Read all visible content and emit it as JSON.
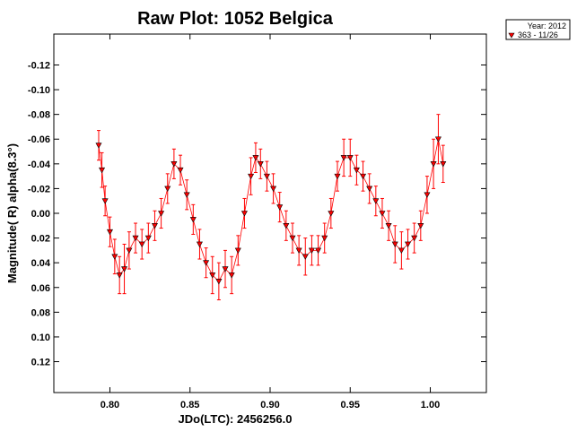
{
  "chart_data": {
    "type": "scatter",
    "title": "Raw Plot: 1052 Belgica",
    "xlabel": "JDo(LTC): 2456256.0",
    "ylabel": "Magnitude( R) alpha(8.3°)",
    "xlim": [
      0.765,
      1.035
    ],
    "ylim": [
      -0.145,
      0.145
    ],
    "y_inverted": true,
    "grid": false,
    "legend_position": "outside-top-right",
    "legend": {
      "title": "Year: 2012",
      "entries": [
        "363 - 11/26"
      ]
    },
    "x_ticks": [
      0.8,
      0.85,
      0.9,
      0.95,
      1.0
    ],
    "x_tick_labels": [
      "0.80",
      "0.85",
      "0.90",
      "0.95",
      "1.00"
    ],
    "y_ticks": [
      -0.12,
      -0.1,
      -0.08,
      -0.06,
      -0.04,
      -0.02,
      0.0,
      0.02,
      0.04,
      0.06,
      0.08,
      0.1,
      0.12
    ],
    "y_tick_labels": [
      "-0.12",
      "-0.10",
      "-0.08",
      "-0.06",
      "-0.04",
      "-0.02",
      "0.00",
      "0.02",
      "0.04",
      "0.06",
      "0.08",
      "0.10",
      "0.12"
    ],
    "series": [
      {
        "name": "363 - 11/26",
        "marker": "triangle-down",
        "marker_fill": "#ff0000",
        "marker_edge": "#000000",
        "error_color": "#ff0000",
        "x": [
          0.793,
          0.795,
          0.797,
          0.8,
          0.803,
          0.806,
          0.809,
          0.812,
          0.816,
          0.82,
          0.824,
          0.828,
          0.832,
          0.836,
          0.84,
          0.844,
          0.848,
          0.852,
          0.856,
          0.86,
          0.864,
          0.868,
          0.872,
          0.876,
          0.88,
          0.884,
          0.888,
          0.891,
          0.894,
          0.898,
          0.902,
          0.906,
          0.91,
          0.914,
          0.918,
          0.922,
          0.926,
          0.93,
          0.934,
          0.938,
          0.942,
          0.946,
          0.95,
          0.954,
          0.958,
          0.962,
          0.966,
          0.97,
          0.974,
          0.978,
          0.982,
          0.986,
          0.99,
          0.994,
          0.998,
          1.002,
          1.005,
          1.008
        ],
        "y": [
          -0.055,
          -0.035,
          -0.01,
          0.015,
          0.035,
          0.05,
          0.045,
          0.03,
          0.02,
          0.025,
          0.02,
          0.01,
          0.0,
          -0.02,
          -0.04,
          -0.035,
          -0.015,
          0.005,
          0.025,
          0.04,
          0.05,
          0.055,
          0.045,
          0.05,
          0.03,
          0.0,
          -0.03,
          -0.045,
          -0.04,
          -0.03,
          -0.02,
          -0.005,
          0.01,
          0.02,
          0.03,
          0.035,
          0.03,
          0.03,
          0.02,
          0.0,
          -0.03,
          -0.045,
          -0.045,
          -0.035,
          -0.03,
          -0.02,
          -0.01,
          0.0,
          0.01,
          0.025,
          0.03,
          0.025,
          0.02,
          0.01,
          -0.015,
          -0.04,
          -0.06,
          -0.04
        ],
        "error": [
          0.012,
          0.014,
          0.012,
          0.012,
          0.014,
          0.015,
          0.02,
          0.015,
          0.012,
          0.012,
          0.012,
          0.012,
          0.012,
          0.012,
          0.012,
          0.012,
          0.012,
          0.012,
          0.012,
          0.012,
          0.015,
          0.015,
          0.015,
          0.015,
          0.012,
          0.012,
          0.015,
          0.012,
          0.012,
          0.012,
          0.012,
          0.012,
          0.012,
          0.012,
          0.012,
          0.015,
          0.012,
          0.012,
          0.012,
          0.012,
          0.012,
          0.015,
          0.015,
          0.012,
          0.012,
          0.012,
          0.012,
          0.012,
          0.012,
          0.015,
          0.015,
          0.012,
          0.012,
          0.012,
          0.015,
          0.02,
          0.02,
          0.015
        ]
      }
    ]
  }
}
